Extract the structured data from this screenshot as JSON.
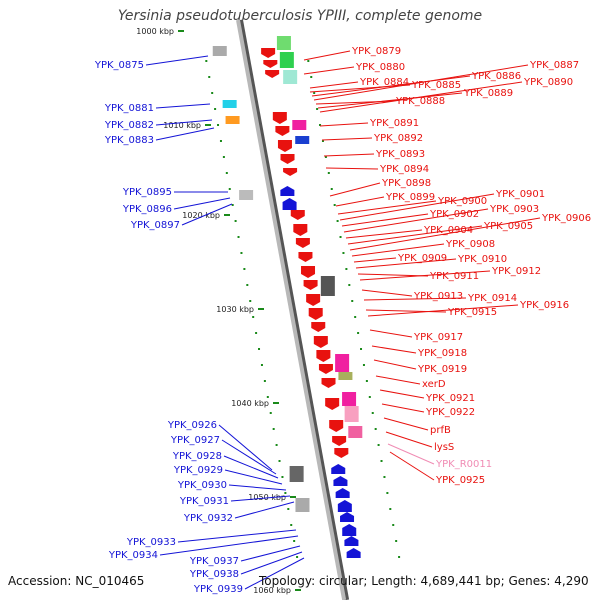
{
  "title": "Yersinia pseudotuberculosis YPIII, complete genome",
  "footer": {
    "accession": "Accession: NC_010465",
    "summary": "Topology: circular; Length: 4,689,441 bp; Genes: 4,290"
  },
  "colors": {
    "backbone": "#9a9a9a",
    "forward_strand": "#e8120f",
    "reverse_strand": "#1414d6",
    "rna_label": "#f08cb4",
    "tick": "#1a8a1a"
  },
  "scale_labels": [
    "1000 kbp",
    "1010 kbp",
    "1020 kbp",
    "1030 kbp",
    "1040 kbp",
    "1050 kbp",
    "1060 kbp"
  ],
  "left_labels": [
    "YPK_0875",
    "YPK_0881",
    "YPK_0882",
    "YPK_0883",
    "YPK_0895",
    "YPK_0896",
    "YPK_0897",
    "YPK_0926",
    "YPK_0927",
    "YPK_0928",
    "YPK_0929",
    "YPK_0930",
    "YPK_0931",
    "YPK_0932",
    "YPK_0933",
    "YPK_0934",
    "YPK_0937",
    "YPK_0938",
    "YPK_0939"
  ],
  "right_labels": [
    "YPK_0879",
    "YPK_0880",
    "YPK_0884",
    "YPK_0885",
    "YPK_0886",
    "YPK_0887",
    "YPK_0888",
    "YPK_0889",
    "YPK_0890",
    "YPK_0891",
    "YPK_0892",
    "YPK_0893",
    "YPK_0894",
    "YPK_0898",
    "YPK_0899",
    "YPK_0900",
    "YPK_0901",
    "YPK_0902",
    "YPK_0903",
    "YPK_0904",
    "YPK_0905",
    "YPK_0906",
    "YPK_0908",
    "YPK_0909",
    "YPK_0910",
    "YPK_0911",
    "YPK_0912",
    "YPK_0913",
    "YPK_0914",
    "YPK_0915",
    "YPK_0916",
    "YPK_0917",
    "YPK_0918",
    "YPK_0919",
    "xerD",
    "YPK_0921",
    "YPK_0922",
    "prfB",
    "lysS",
    "YPK_R0011",
    "YPK_0925"
  ]
}
